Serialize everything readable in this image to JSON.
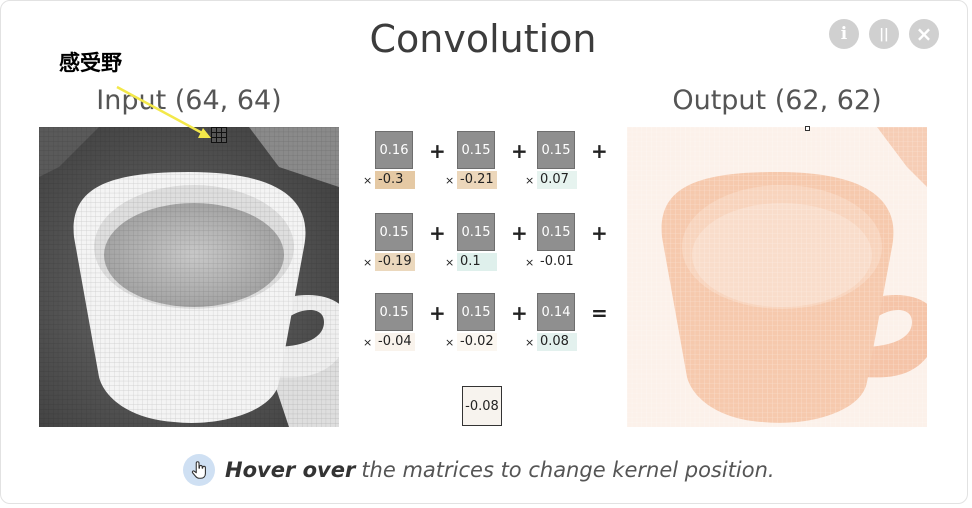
{
  "title": "Convolution",
  "controls": {
    "info": "i",
    "pause": "||",
    "close": "×"
  },
  "annotation": "感受野",
  "input_label": "Input (64, 64)",
  "output_label": "Output (62, 62)",
  "kernel": [
    {
      "value": "0.16",
      "weight": "-0.3",
      "color": "#e5c9a4"
    },
    {
      "value": "0.15",
      "weight": "-0.21",
      "color": "#ecd7bb"
    },
    {
      "value": "0.15",
      "weight": "0.07",
      "color": "#e6f3ef"
    },
    {
      "value": "0.15",
      "weight": "-0.19",
      "color": "#ebd8bd"
    },
    {
      "value": "0.15",
      "weight": "0.1",
      "color": "#dff0ec"
    },
    {
      "value": "0.15",
      "weight": "-0.01",
      "color": "#ffffff"
    },
    {
      "value": "0.15",
      "weight": "-0.04",
      "color": "#f9f3ec"
    },
    {
      "value": "0.15",
      "weight": "-0.02",
      "color": "#fbf7f1"
    },
    {
      "value": "0.14",
      "weight": "0.08",
      "color": "#e3f1ee"
    }
  ],
  "operators": [
    "+",
    "+",
    "+",
    "+",
    "+",
    "+",
    "+",
    "+",
    "="
  ],
  "times": "×",
  "bias": "-0.08",
  "hint": {
    "bold": "Hover over",
    "rest": "the matrices to change kernel position."
  },
  "colors": {
    "annotation_arrow": "#f3e84a",
    "output_tint": "#f3b79a"
  }
}
